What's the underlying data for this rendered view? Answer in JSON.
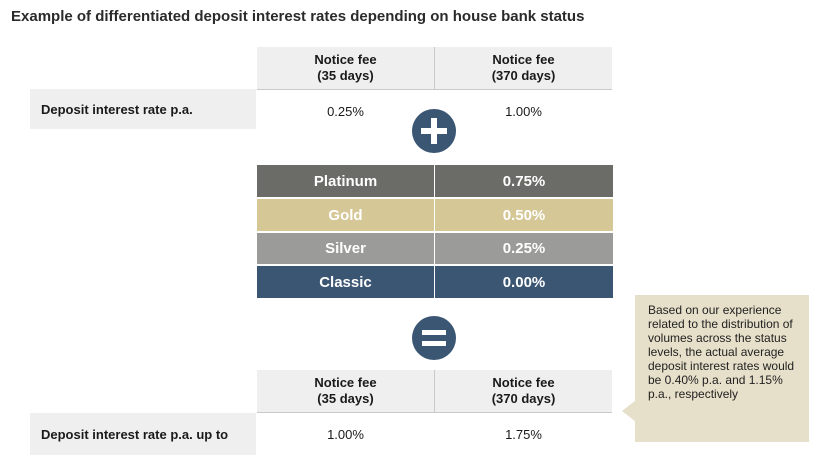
{
  "title": "Example of differentiated deposit interest rates depending on house bank status",
  "top_table": {
    "headers": [
      "Notice fee\n(35 days)",
      "Notice fee\n(370 days)"
    ],
    "row_label": "Deposit interest rate p.a.",
    "values": [
      "0.25%",
      "1.00%"
    ]
  },
  "tiers": [
    {
      "name": "Platinum",
      "value": "0.75%",
      "color": "#6b6b67"
    },
    {
      "name": "Gold",
      "value": "0.50%",
      "color": "#d5c796"
    },
    {
      "name": "Silver",
      "value": "0.25%",
      "color": "#9b9b99"
    },
    {
      "name": "Classic",
      "value": "0.00%",
      "color": "#3a5673"
    }
  ],
  "bottom_table": {
    "headers": [
      "Notice fee\n(35 days)",
      "Notice fee\n(370 days)"
    ],
    "row_label": "Deposit interest rate p.a. up to",
    "values": [
      "1.00%",
      "1.75%"
    ]
  },
  "note": "Based on our experience related to the distribution of volumes across the status levels, the actual average deposit interest rates would be 0.40% p.a. and 1.15% p.a., respectively",
  "icons": {
    "plus": "plus-icon",
    "equals": "equals-icon"
  },
  "colors": {
    "circle": "#3a5673",
    "header_bg": "#efefef",
    "note_bg": "#e6dfc9"
  }
}
